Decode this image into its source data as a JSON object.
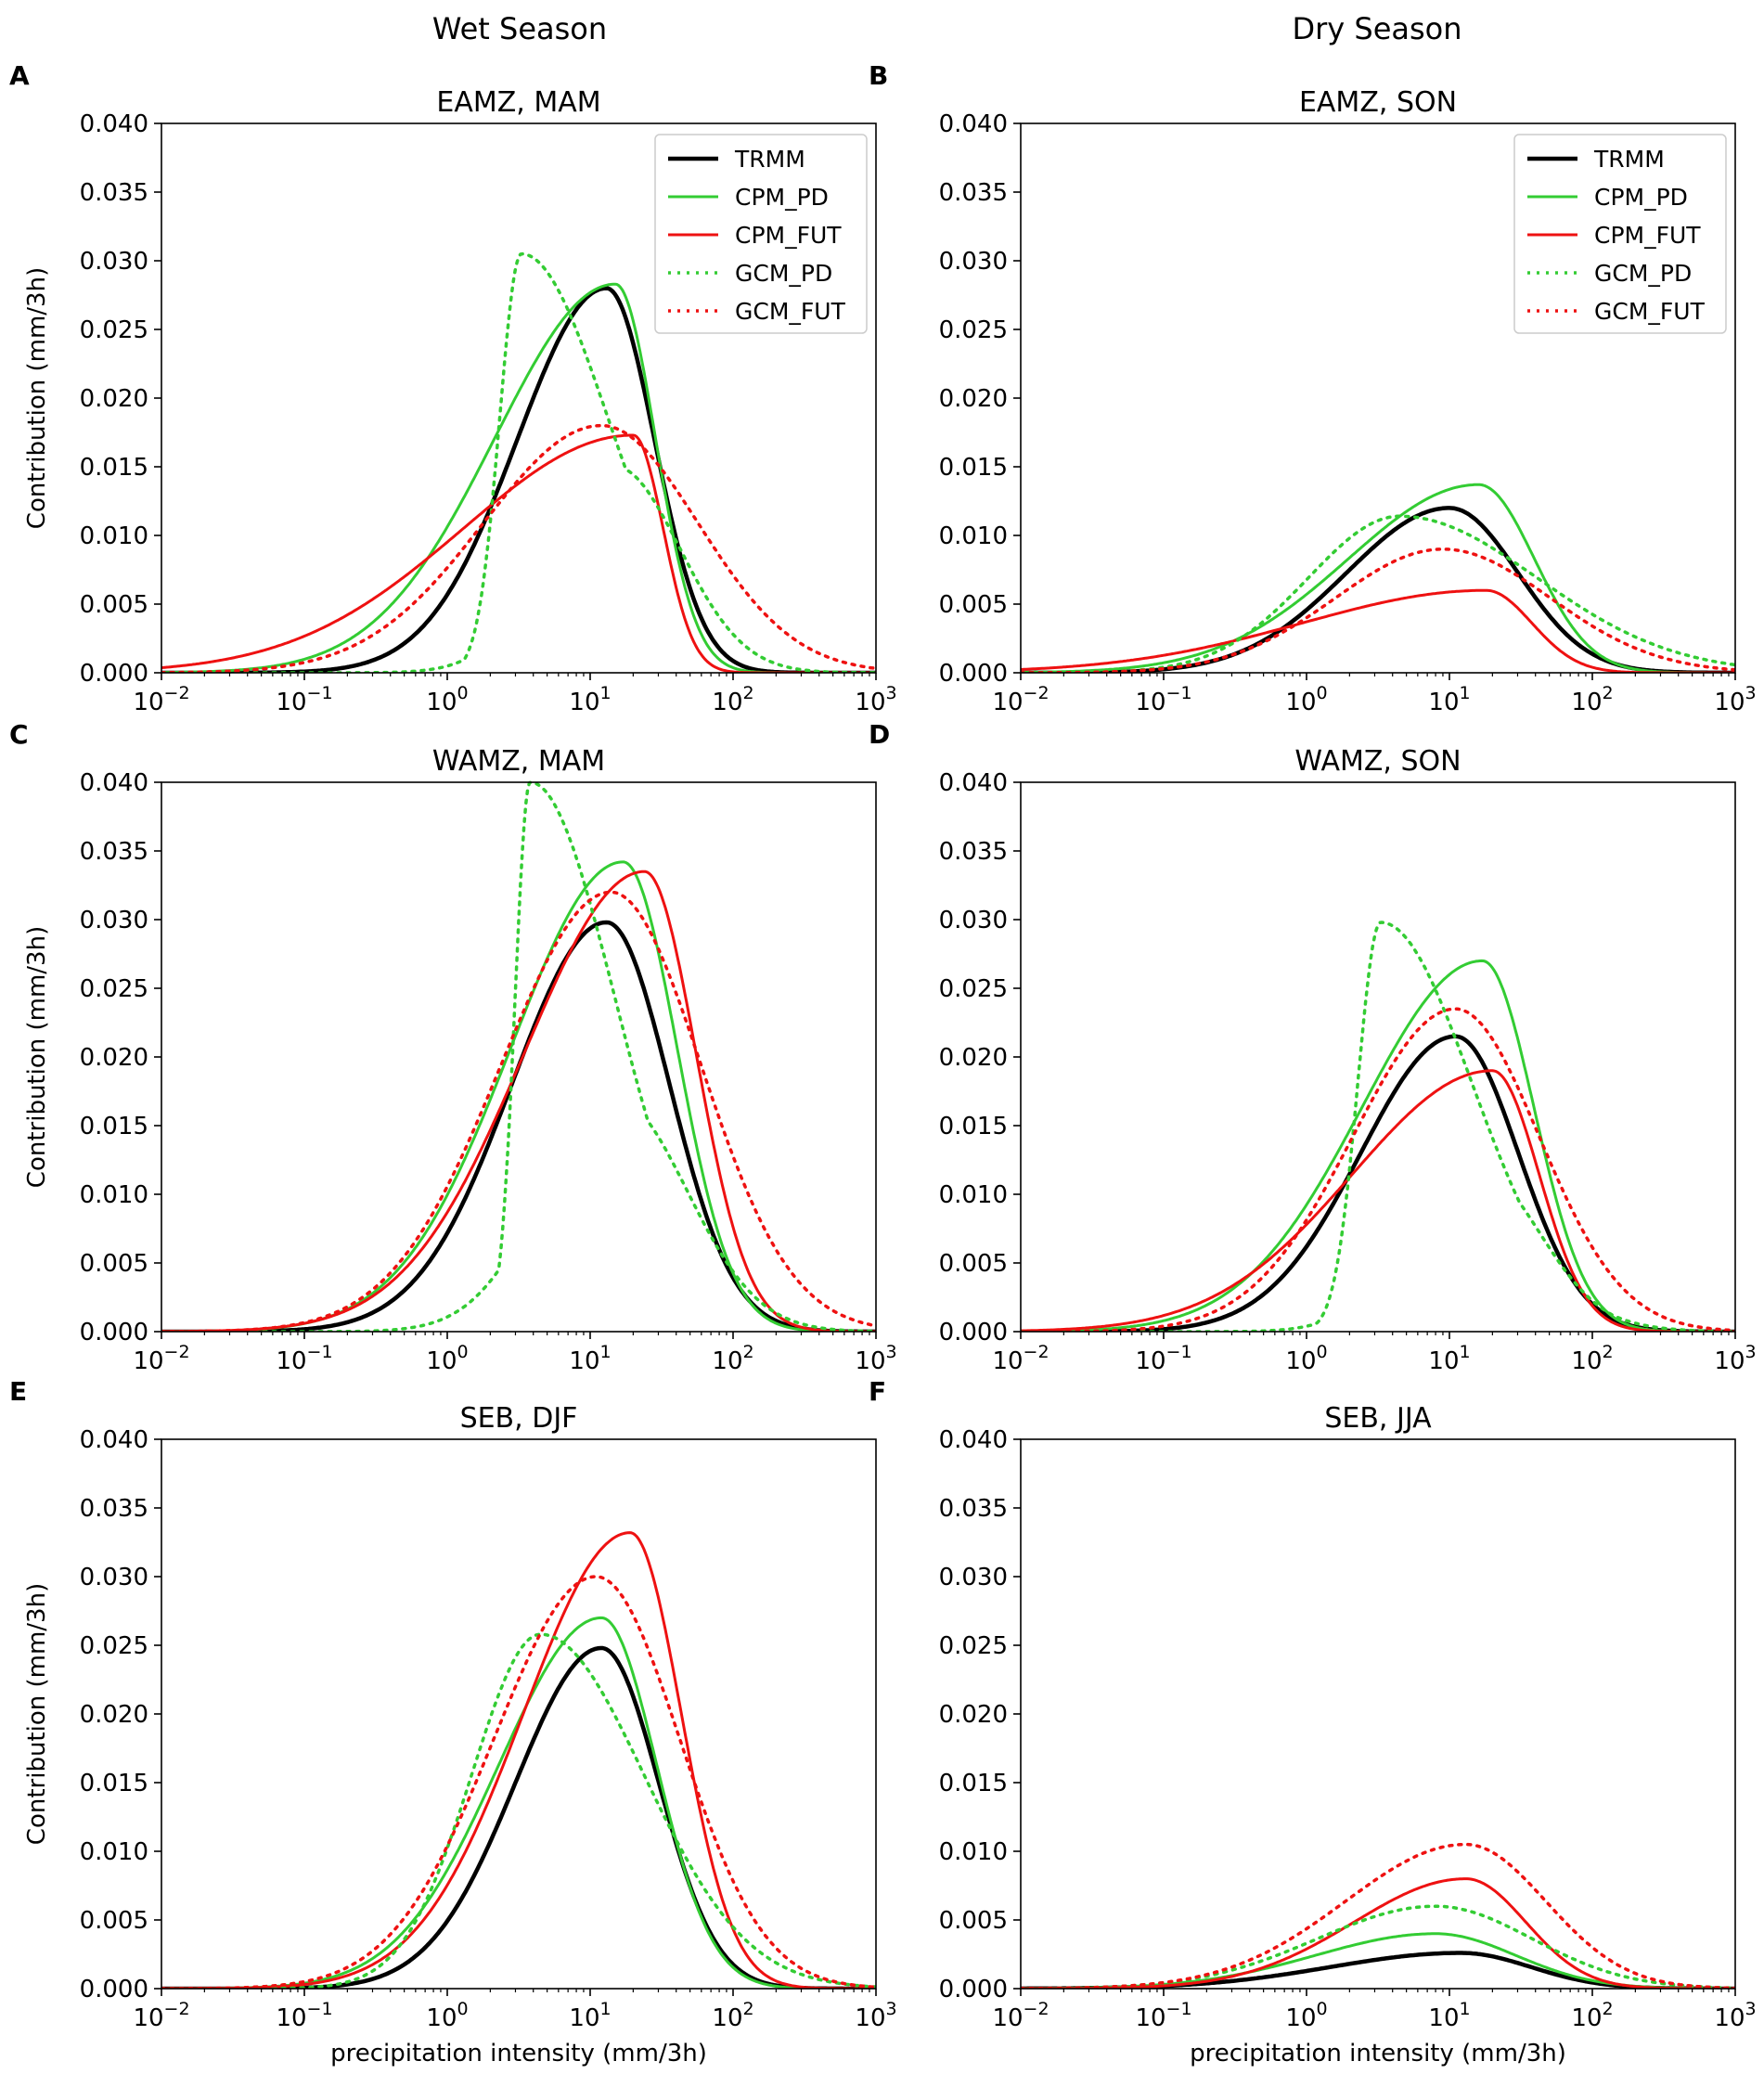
{
  "figure": {
    "column_headings": [
      "Wet Season",
      "Dry Season"
    ]
  },
  "legend": {
    "entries": [
      "TRMM",
      "CPM_PD",
      "CPM_FUT",
      "GCM_PD",
      "GCM_FUT"
    ]
  },
  "series_styles": {
    "TRMM": {
      "color": "#000000",
      "dash": "solid"
    },
    "CPM_PD": {
      "color": "#33cc33",
      "dash": "solid"
    },
    "CPM_FUT": {
      "color": "#ee1111",
      "dash": "solid"
    },
    "GCM_PD": {
      "color": "#33cc33",
      "dash": "dotted"
    },
    "GCM_FUT": {
      "color": "#ee1111",
      "dash": "dotted"
    }
  },
  "axes": {
    "xlabel": "precipitation intensity (mm/3h)",
    "ylabel": "Contribution (mm/3h)",
    "xscale": "log",
    "xlim": [
      0.01,
      1000
    ],
    "ylim": [
      0,
      0.04
    ],
    "xtick_values": [
      0.01,
      0.1,
      1,
      10,
      100,
      1000
    ],
    "xtick_bases": [
      "10",
      "10",
      "10",
      "10",
      "10",
      "10"
    ],
    "xtick_exponents": [
      "−2",
      "−1",
      "0",
      "1",
      "2",
      "3"
    ],
    "yticks": [
      "0.000",
      "0.005",
      "0.010",
      "0.015",
      "0.020",
      "0.025",
      "0.030",
      "0.035",
      "0.040"
    ]
  },
  "chart_data": [
    {
      "type": "line",
      "letter": "A",
      "title": "EAMZ, MAM",
      "column": "Wet Season",
      "legend": true,
      "legend_position": "top-right",
      "series": [
        {
          "name": "TRMM",
          "peak_x": 13,
          "peak_y": 0.028,
          "width": 0.48,
          "skew": -0.3
        },
        {
          "name": "CPM_PD",
          "peak_x": 15,
          "peak_y": 0.0283,
          "width": 0.56,
          "skew": -0.5
        },
        {
          "name": "CPM_FUT",
          "peak_x": 20,
          "peak_y": 0.0173,
          "width": 0.7,
          "skew": -0.7
        },
        {
          "name": "GCM_PD",
          "peak_x": 3.3,
          "peak_y": 0.0305,
          "width": 0.38,
          "skew": 0.6,
          "shoulder": {
            "x": 15,
            "y": 0.015,
            "w": 0.45
          }
        },
        {
          "name": "GCM_FUT",
          "peak_x": 12,
          "peak_y": 0.018,
          "width": 0.75,
          "skew": -0.1
        }
      ]
    },
    {
      "type": "line",
      "letter": "B",
      "title": "EAMZ, SON",
      "column": "Dry Season",
      "legend": true,
      "legend_position": "top-right",
      "series": [
        {
          "name": "TRMM",
          "peak_x": 10,
          "peak_y": 0.012,
          "width": 0.6,
          "skew": -0.2
        },
        {
          "name": "CPM_PD",
          "peak_x": 16,
          "peak_y": 0.0137,
          "width": 0.65,
          "skew": -0.4
        },
        {
          "name": "CPM_FUT",
          "peak_x": 18,
          "peak_y": 0.006,
          "width": 0.8,
          "skew": -0.6
        },
        {
          "name": "GCM_PD",
          "peak_x": 4.5,
          "peak_y": 0.0114,
          "width": 0.8,
          "skew": 0.2
        },
        {
          "name": "GCM_FUT",
          "peak_x": 9,
          "peak_y": 0.009,
          "width": 0.75,
          "skew": 0.0
        }
      ]
    },
    {
      "type": "line",
      "letter": "C",
      "title": "WAMZ, MAM",
      "column": "Wet Season",
      "legend": false,
      "series": [
        {
          "name": "TRMM",
          "peak_x": 13,
          "peak_y": 0.0298,
          "width": 0.55,
          "skew": -0.2
        },
        {
          "name": "CPM_PD",
          "peak_x": 17,
          "peak_y": 0.0342,
          "width": 0.58,
          "skew": -0.35
        },
        {
          "name": "CPM_FUT",
          "peak_x": 24,
          "peak_y": 0.0335,
          "width": 0.6,
          "skew": -0.4
        },
        {
          "name": "GCM_PD",
          "peak_x": 3.8,
          "peak_y": 0.04,
          "width": 0.35,
          "skew": 0.7,
          "shoulder": {
            "x": 15,
            "y": 0.017,
            "w": 0.5
          }
        },
        {
          "name": "GCM_FUT",
          "peak_x": 14,
          "peak_y": 0.032,
          "width": 0.7,
          "skew": -0.1
        }
      ]
    },
    {
      "type": "line",
      "letter": "D",
      "title": "WAMZ, SON",
      "column": "Dry Season",
      "legend": false,
      "series": [
        {
          "name": "TRMM",
          "peak_x": 11,
          "peak_y": 0.0215,
          "width": 0.55,
          "skew": -0.2
        },
        {
          "name": "CPM_PD",
          "peak_x": 17,
          "peak_y": 0.027,
          "width": 0.6,
          "skew": -0.4
        },
        {
          "name": "CPM_FUT",
          "peak_x": 20,
          "peak_y": 0.019,
          "width": 0.65,
          "skew": -0.5
        },
        {
          "name": "GCM_PD",
          "peak_x": 3.3,
          "peak_y": 0.0298,
          "width": 0.4,
          "skew": 0.6,
          "shoulder": {
            "x": 15,
            "y": 0.012,
            "w": 0.45
          }
        },
        {
          "name": "GCM_FUT",
          "peak_x": 11,
          "peak_y": 0.0235,
          "width": 0.65,
          "skew": -0.1
        }
      ]
    },
    {
      "type": "line",
      "letter": "E",
      "title": "SEB, DJF",
      "column": "Wet Season",
      "legend": false,
      "series": [
        {
          "name": "TRMM",
          "peak_x": 12,
          "peak_y": 0.0248,
          "width": 0.5,
          "skew": -0.2
        },
        {
          "name": "CPM_PD",
          "peak_x": 12,
          "peak_y": 0.027,
          "width": 0.55,
          "skew": -0.3
        },
        {
          "name": "CPM_FUT",
          "peak_x": 19,
          "peak_y": 0.0332,
          "width": 0.55,
          "skew": -0.35
        },
        {
          "name": "GCM_PD",
          "peak_x": 4.5,
          "peak_y": 0.0258,
          "width": 0.6,
          "skew": 0.2
        },
        {
          "name": "GCM_FUT",
          "peak_x": 11,
          "peak_y": 0.03,
          "width": 0.65,
          "skew": -0.1
        }
      ]
    },
    {
      "type": "line",
      "letter": "F",
      "title": "SEB, JJA",
      "column": "Dry Season",
      "legend": false,
      "series": [
        {
          "name": "TRMM",
          "peak_x": 12,
          "peak_y": 0.0026,
          "width": 0.7,
          "skew": -0.3
        },
        {
          "name": "CPM_PD",
          "peak_x": 8,
          "peak_y": 0.004,
          "width": 0.7,
          "skew": -0.2
        },
        {
          "name": "CPM_FUT",
          "peak_x": 13,
          "peak_y": 0.008,
          "width": 0.6,
          "skew": -0.3
        },
        {
          "name": "GCM_PD",
          "peak_x": 8,
          "peak_y": 0.006,
          "width": 0.75,
          "skew": -0.1
        },
        {
          "name": "GCM_FUT",
          "peak_x": 13,
          "peak_y": 0.0105,
          "width": 0.7,
          "skew": -0.2
        }
      ]
    }
  ]
}
